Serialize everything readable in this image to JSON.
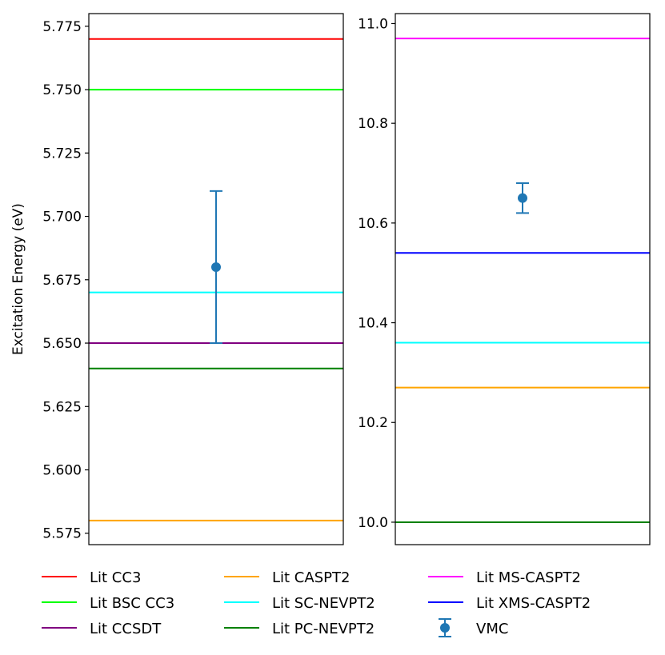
{
  "chart_data": [
    {
      "type": "line",
      "title": "",
      "xlabel": "",
      "ylabel": "Excitation Energy (eV)",
      "ylim": [
        5.5705,
        5.78
      ],
      "yticks": [
        5.575,
        5.6,
        5.625,
        5.65,
        5.675,
        5.7,
        5.725,
        5.75,
        5.775
      ],
      "ytick_labels": [
        "5.575",
        "5.600",
        "5.625",
        "5.650",
        "5.675",
        "5.700",
        "5.725",
        "5.750",
        "5.775"
      ],
      "grid": false,
      "reference_lines": [
        {
          "name": "Lit CC3",
          "y": 5.77,
          "color": "#ff0000"
        },
        {
          "name": "Lit BSC CC3",
          "y": 5.75,
          "color": "#00ff00"
        },
        {
          "name": "Lit SC-NEVPT2",
          "y": 5.67,
          "color": "#00ffff"
        },
        {
          "name": "Lit CCSDT",
          "y": 5.65,
          "color": "#800080"
        },
        {
          "name": "Lit PC-NEVPT2",
          "y": 5.64,
          "color": "#008000"
        },
        {
          "name": "Lit CASPT2",
          "y": 5.58,
          "color": "#ffa500"
        }
      ],
      "points": [
        {
          "name": "VMC",
          "y": 5.68,
          "err_low": 5.65,
          "err_high": 5.71,
          "color": "#1f77b4"
        }
      ]
    },
    {
      "type": "line",
      "title": "",
      "xlabel": "",
      "ylabel": "",
      "ylim": [
        9.955,
        11.02
      ],
      "yticks": [
        10.0,
        10.2,
        10.4,
        10.6,
        10.8,
        11.0
      ],
      "ytick_labels": [
        "10.0",
        "10.2",
        "10.4",
        "10.6",
        "10.8",
        "11.0"
      ],
      "grid": false,
      "reference_lines": [
        {
          "name": "Lit MS-CASPT2",
          "y": 10.97,
          "color": "#ff00ff"
        },
        {
          "name": "Lit XMS-CASPT2",
          "y": 10.54,
          "color": "#0000ff"
        },
        {
          "name": "Lit SC-NEVPT2",
          "y": 10.36,
          "color": "#00ffff"
        },
        {
          "name": "Lit CASPT2",
          "y": 10.27,
          "color": "#ffa500"
        },
        {
          "name": "Lit PC-NEVPT2",
          "y": 10.0,
          "color": "#008000"
        }
      ],
      "points": [
        {
          "name": "VMC",
          "y": 10.65,
          "err_low": 10.62,
          "err_high": 10.68,
          "color": "#1f77b4"
        }
      ]
    }
  ],
  "legend": {
    "placement": "bottom",
    "columns": 3,
    "entries": [
      {
        "label": "Lit CC3",
        "color": "#ff0000",
        "kind": "line"
      },
      {
        "label": "Lit BSC CC3",
        "color": "#00ff00",
        "kind": "line"
      },
      {
        "label": "Lit CCSDT",
        "color": "#800080",
        "kind": "line"
      },
      {
        "label": "Lit CASPT2",
        "color": "#ffa500",
        "kind": "line"
      },
      {
        "label": "Lit SC-NEVPT2",
        "color": "#00ffff",
        "kind": "line"
      },
      {
        "label": "Lit PC-NEVPT2",
        "color": "#008000",
        "kind": "line"
      },
      {
        "label": "Lit MS-CASPT2",
        "color": "#ff00ff",
        "kind": "line"
      },
      {
        "label": "Lit XMS-CASPT2",
        "color": "#0000ff",
        "kind": "line"
      },
      {
        "label": "VMC",
        "color": "#1f77b4",
        "kind": "errorbar"
      }
    ]
  }
}
